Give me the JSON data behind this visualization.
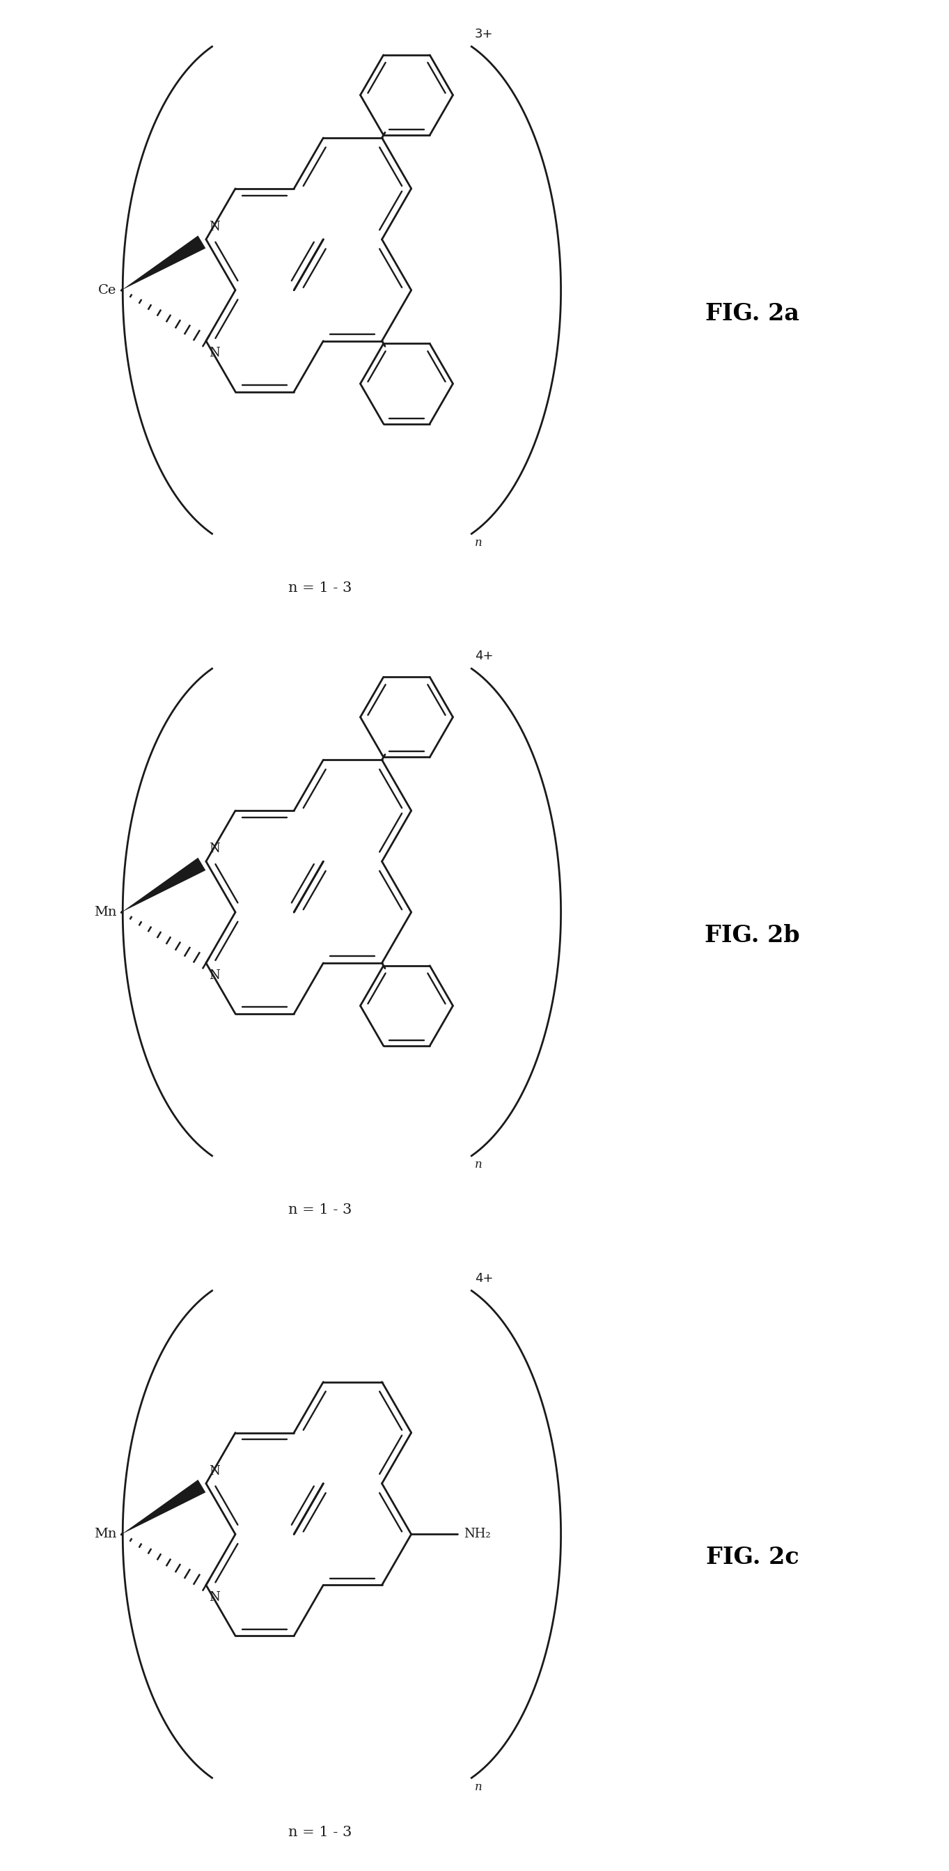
{
  "fig_labels": [
    "FIG. 2a",
    "FIG. 2b",
    "FIG. 2c"
  ],
  "charges": [
    "3+",
    "4+",
    "4+"
  ],
  "metals": [
    "Ce",
    "Mn",
    "Mn"
  ],
  "n_labels": [
    "n = 1 - 3",
    "n = 1 - 3",
    "n = 1 - 3"
  ],
  "nh2_label": "NH₂",
  "background_color": "#ffffff",
  "line_color": "#1a1a1a",
  "fig_width": 13.63,
  "fig_height": 26.87
}
